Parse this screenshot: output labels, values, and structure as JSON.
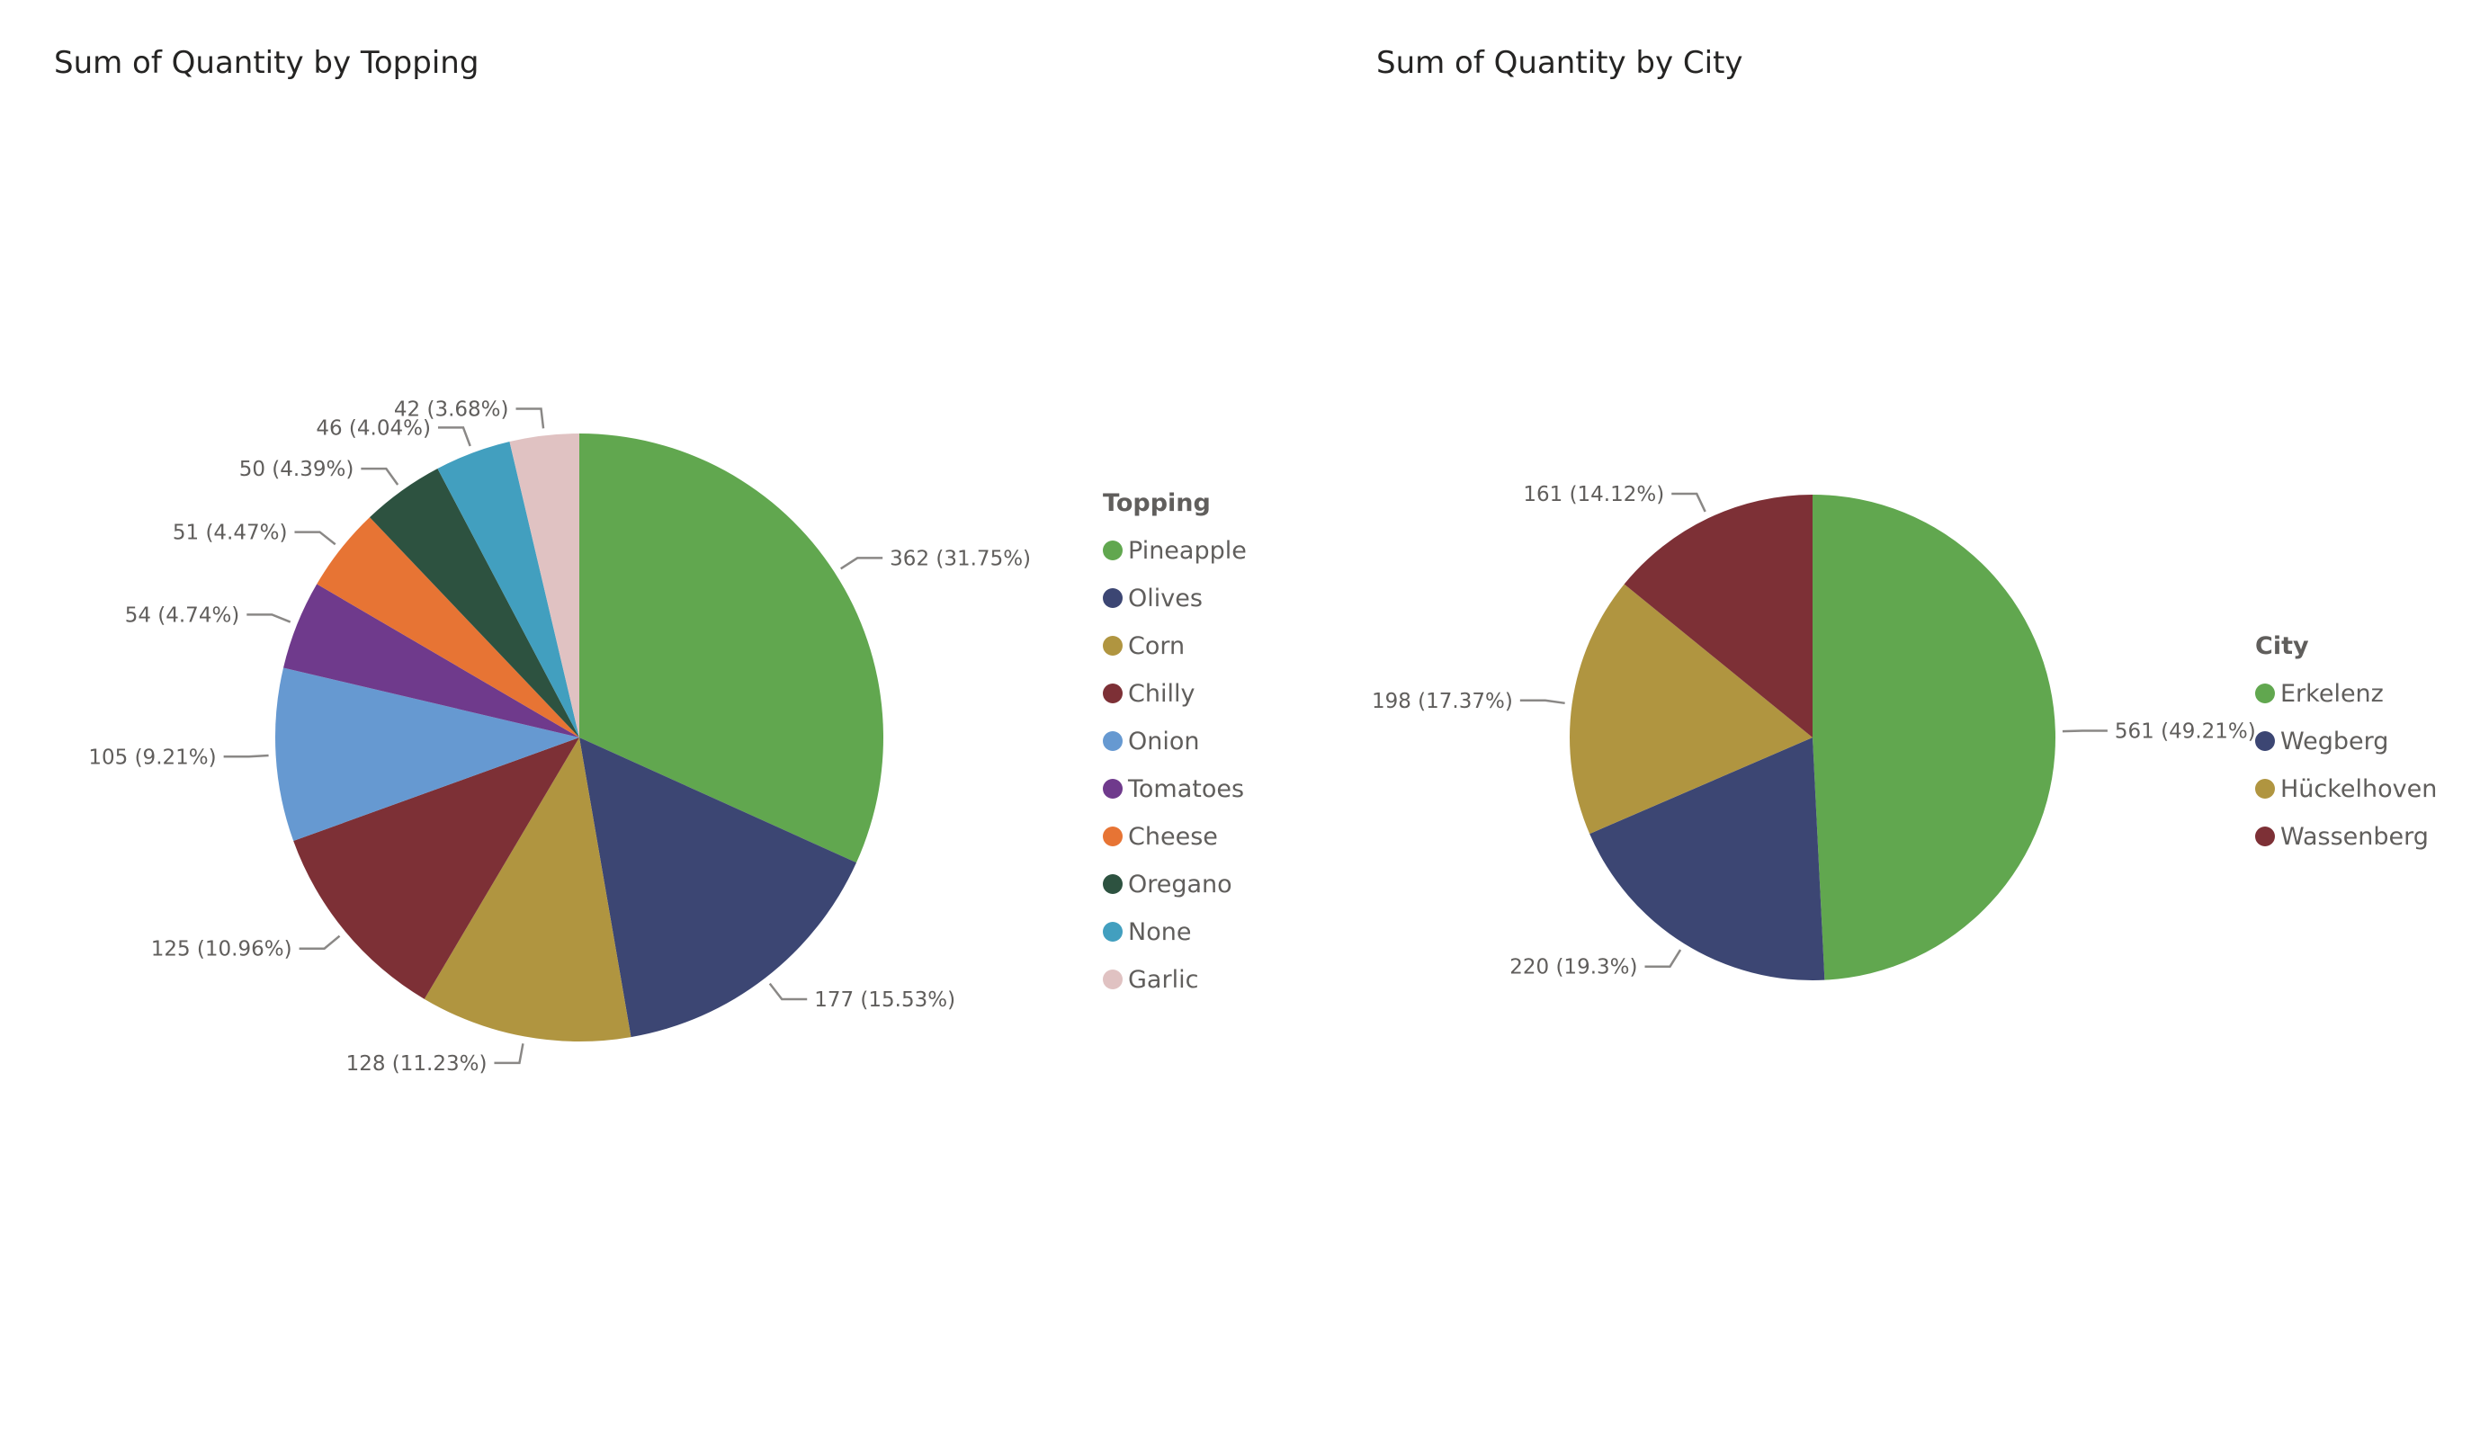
{
  "chart_data": [
    {
      "type": "pie",
      "title": "Sum of Quantity by Topping",
      "legend_title": "Topping",
      "legend_position": "right",
      "categories": [
        "Pineapple",
        "Olives",
        "Corn",
        "Chilly",
        "Onion",
        "Tomatoes",
        "Cheese",
        "Oregano",
        "None",
        "Garlic"
      ],
      "values": [
        362,
        177,
        128,
        125,
        105,
        54,
        51,
        50,
        46,
        42
      ],
      "data_labels": [
        "362 (31.75%)",
        "177 (15.53%)",
        "128 (11.23%)",
        "125 (10.96%)",
        "105 (9.21%)",
        "54 (4.74%)",
        "51 (4.47%)",
        "50 (4.39%)",
        "46 (4.04%)",
        "42 (3.68%)"
      ],
      "colors": [
        "#61a74f",
        "#3c4673",
        "#b09540",
        "#7d3036",
        "#6699d1",
        "#6f3a8c",
        "#e77434",
        "#2d5240",
        "#429fbf",
        "#e0c2c2"
      ]
    },
    {
      "type": "pie",
      "title": "Sum of Quantity by City",
      "legend_title": "City",
      "legend_position": "right",
      "categories": [
        "Erkelenz",
        "Wegberg",
        "Hückelhoven",
        "Wassenberg"
      ],
      "values": [
        561,
        220,
        198,
        161
      ],
      "data_labels": [
        "561 (49.21%)",
        "220 (19.3%)",
        "198 (17.37%)",
        "161 (14.12%)"
      ],
      "colors": [
        "#61a74f",
        "#3c4673",
        "#b09540",
        "#7d3036"
      ]
    }
  ]
}
